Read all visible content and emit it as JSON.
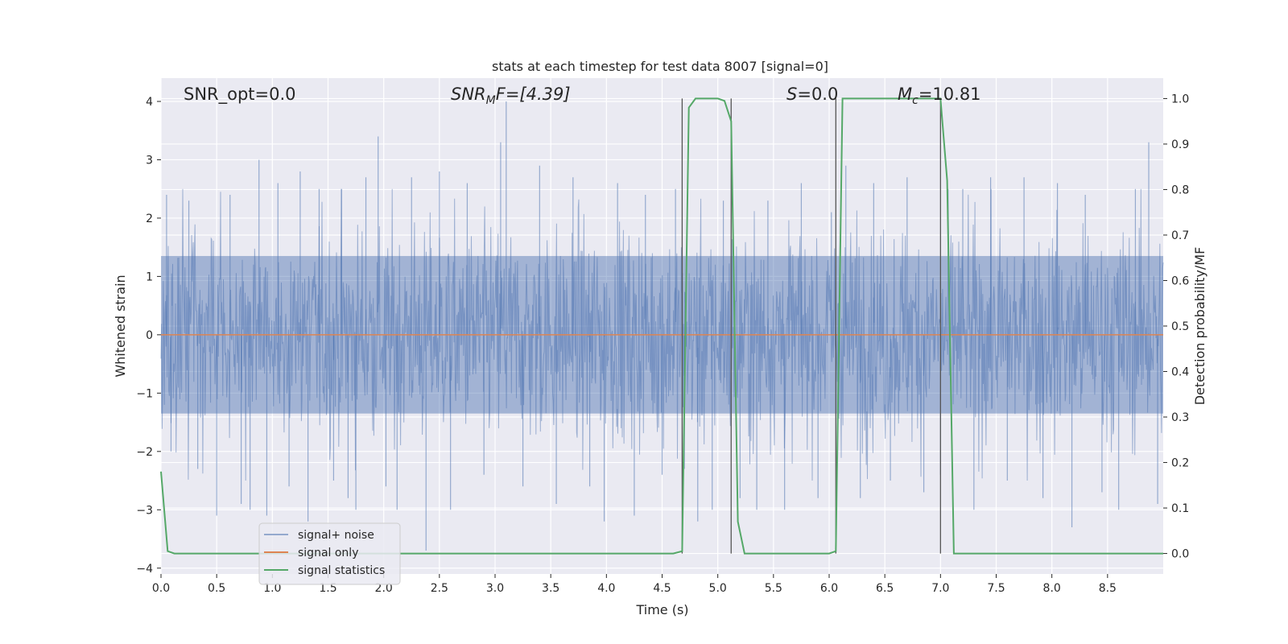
{
  "chart_data": {
    "type": "line",
    "title": "stats at each timestep for test data 8007 [signal=0]",
    "xlabel": "Time (s)",
    "ylabel": "Whitened strain",
    "y2label": "Detection probability/MF",
    "xlim": [
      0.0,
      9.0
    ],
    "ylim": [
      -4.1,
      4.4
    ],
    "y2lim": [
      -0.045,
      1.045
    ],
    "xticks": [
      "0.0",
      "0.5",
      "1.0",
      "1.5",
      "2.0",
      "2.5",
      "3.0",
      "3.5",
      "4.0",
      "4.5",
      "5.0",
      "5.5",
      "6.0",
      "6.5",
      "7.0",
      "7.5",
      "8.0",
      "8.5"
    ],
    "yticks": [
      "−4",
      "−3",
      "−2",
      "−1",
      "0",
      "1",
      "2",
      "3",
      "4"
    ],
    "y2ticks": [
      "0.0",
      "0.1",
      "0.2",
      "0.3",
      "0.4",
      "0.5",
      "0.6",
      "0.7",
      "0.8",
      "0.9",
      "1.0"
    ],
    "grid": true,
    "legend_position": "lower-left",
    "annotations": {
      "snr_opt": "SNR_opt=0.0",
      "snr_mf_main": "SNR",
      "snr_mf_sub": "M",
      "snr_mf_rest": "F=[4.39]",
      "s_main": "S",
      "s_rest": "=0.0",
      "mc_main": "M",
      "mc_sub": "c",
      "mc_rest": "=10.81"
    },
    "series": [
      {
        "name": "signal+ noise",
        "color": "#4c72b0",
        "note_values": "noise band approximately between -2.5 and 2.5 with spikes up to 4.0 and down to -3.7"
      },
      {
        "name": "signal only",
        "color": "#dd8452",
        "values_y": 0.0
      },
      {
        "name": "signal statistics",
        "color": "#55a868",
        "x": [
          0.0,
          0.06,
          0.12,
          1.0,
          2.0,
          3.0,
          4.0,
          4.6,
          4.68,
          4.74,
          4.8,
          4.86,
          5.0,
          5.06,
          5.12,
          5.18,
          5.24,
          5.5,
          6.0,
          6.06,
          6.12,
          6.2,
          6.5,
          7.0,
          7.06,
          7.12,
          7.5,
          8.0,
          9.0
        ],
        "values": [
          0.18,
          0.005,
          0.0,
          0.0,
          0.0,
          0.0,
          0.0,
          0.0,
          0.005,
          0.98,
          1.0,
          1.0,
          1.0,
          0.995,
          0.95,
          0.07,
          0.0,
          0.0,
          0.0,
          0.005,
          1.0,
          1.0,
          1.0,
          1.0,
          0.82,
          0.0,
          0.0,
          0.0,
          0.0
        ]
      }
    ],
    "vertical_lines_x": [
      4.68,
      5.12,
      6.06,
      7.0
    ],
    "spikes": [
      {
        "x": 0.05,
        "y": 2.4
      },
      {
        "x": 0.09,
        "y": -2.0
      },
      {
        "x": 0.25,
        "y": 2.3
      },
      {
        "x": 0.33,
        "y": -2.3
      },
      {
        "x": 0.5,
        "y": -3.1
      },
      {
        "x": 0.62,
        "y": 2.4
      },
      {
        "x": 0.72,
        "y": -2.9
      },
      {
        "x": 0.8,
        "y": -3.0
      },
      {
        "x": 0.88,
        "y": 3.0
      },
      {
        "x": 0.95,
        "y": -3.1
      },
      {
        "x": 1.05,
        "y": 2.6
      },
      {
        "x": 1.15,
        "y": -2.6
      },
      {
        "x": 1.25,
        "y": 2.8
      },
      {
        "x": 1.32,
        "y": -3.2
      },
      {
        "x": 1.42,
        "y": 2.5
      },
      {
        "x": 1.55,
        "y": -2.5
      },
      {
        "x": 1.62,
        "y": 2.5
      },
      {
        "x": 1.68,
        "y": -2.8
      },
      {
        "x": 1.75,
        "y": -3.0
      },
      {
        "x": 1.84,
        "y": 2.7
      },
      {
        "x": 1.95,
        "y": 3.4
      },
      {
        "x": 2.02,
        "y": -2.6
      },
      {
        "x": 2.12,
        "y": -3.0
      },
      {
        "x": 2.25,
        "y": 2.7
      },
      {
        "x": 2.38,
        "y": -3.7
      },
      {
        "x": 2.5,
        "y": 2.8
      },
      {
        "x": 2.6,
        "y": -3.0
      },
      {
        "x": 2.75,
        "y": 2.6
      },
      {
        "x": 2.9,
        "y": -2.4
      },
      {
        "x": 3.05,
        "y": 3.3
      },
      {
        "x": 3.1,
        "y": 4.0
      },
      {
        "x": 3.25,
        "y": -2.6
      },
      {
        "x": 3.4,
        "y": 2.9
      },
      {
        "x": 3.55,
        "y": -2.9
      },
      {
        "x": 3.7,
        "y": 2.7
      },
      {
        "x": 3.85,
        "y": -2.6
      },
      {
        "x": 3.98,
        "y": -3.2
      },
      {
        "x": 4.1,
        "y": 2.6
      },
      {
        "x": 4.25,
        "y": -3.1
      },
      {
        "x": 4.35,
        "y": 2.4
      },
      {
        "x": 4.5,
        "y": -2.4
      },
      {
        "x": 4.62,
        "y": 2.5
      },
      {
        "x": 4.7,
        "y": -2.3
      },
      {
        "x": 4.82,
        "y": -3.2
      },
      {
        "x": 4.95,
        "y": -3.0
      },
      {
        "x": 5.05,
        "y": 2.3
      },
      {
        "x": 5.2,
        "y": -2.8
      },
      {
        "x": 5.35,
        "y": -3.0
      },
      {
        "x": 5.45,
        "y": 2.3
      },
      {
        "x": 5.6,
        "y": -3.0
      },
      {
        "x": 5.75,
        "y": 2.6
      },
      {
        "x": 5.9,
        "y": -2.8
      },
      {
        "x": 6.02,
        "y": 2.1
      },
      {
        "x": 6.15,
        "y": 2.9
      },
      {
        "x": 6.28,
        "y": -2.8
      },
      {
        "x": 6.4,
        "y": 2.6
      },
      {
        "x": 6.55,
        "y": -2.5
      },
      {
        "x": 6.7,
        "y": 2.7
      },
      {
        "x": 6.85,
        "y": -2.7
      },
      {
        "x": 7.0,
        "y": -2.4
      },
      {
        "x": 7.2,
        "y": 2.5
      },
      {
        "x": 7.3,
        "y": -3.0
      },
      {
        "x": 7.45,
        "y": 2.7
      },
      {
        "x": 7.6,
        "y": -2.5
      },
      {
        "x": 7.75,
        "y": 2.7
      },
      {
        "x": 7.92,
        "y": -2.8
      },
      {
        "x": 8.05,
        "y": 2.6
      },
      {
        "x": 8.18,
        "y": -3.3
      },
      {
        "x": 8.3,
        "y": 2.4
      },
      {
        "x": 8.45,
        "y": -2.7
      },
      {
        "x": 8.6,
        "y": -3.0
      },
      {
        "x": 8.75,
        "y": 2.5
      },
      {
        "x": 8.87,
        "y": 3.3
      },
      {
        "x": 8.95,
        "y": -2.9
      }
    ],
    "legend": [
      "signal+ noise",
      "signal only",
      "signal statistics"
    ]
  }
}
